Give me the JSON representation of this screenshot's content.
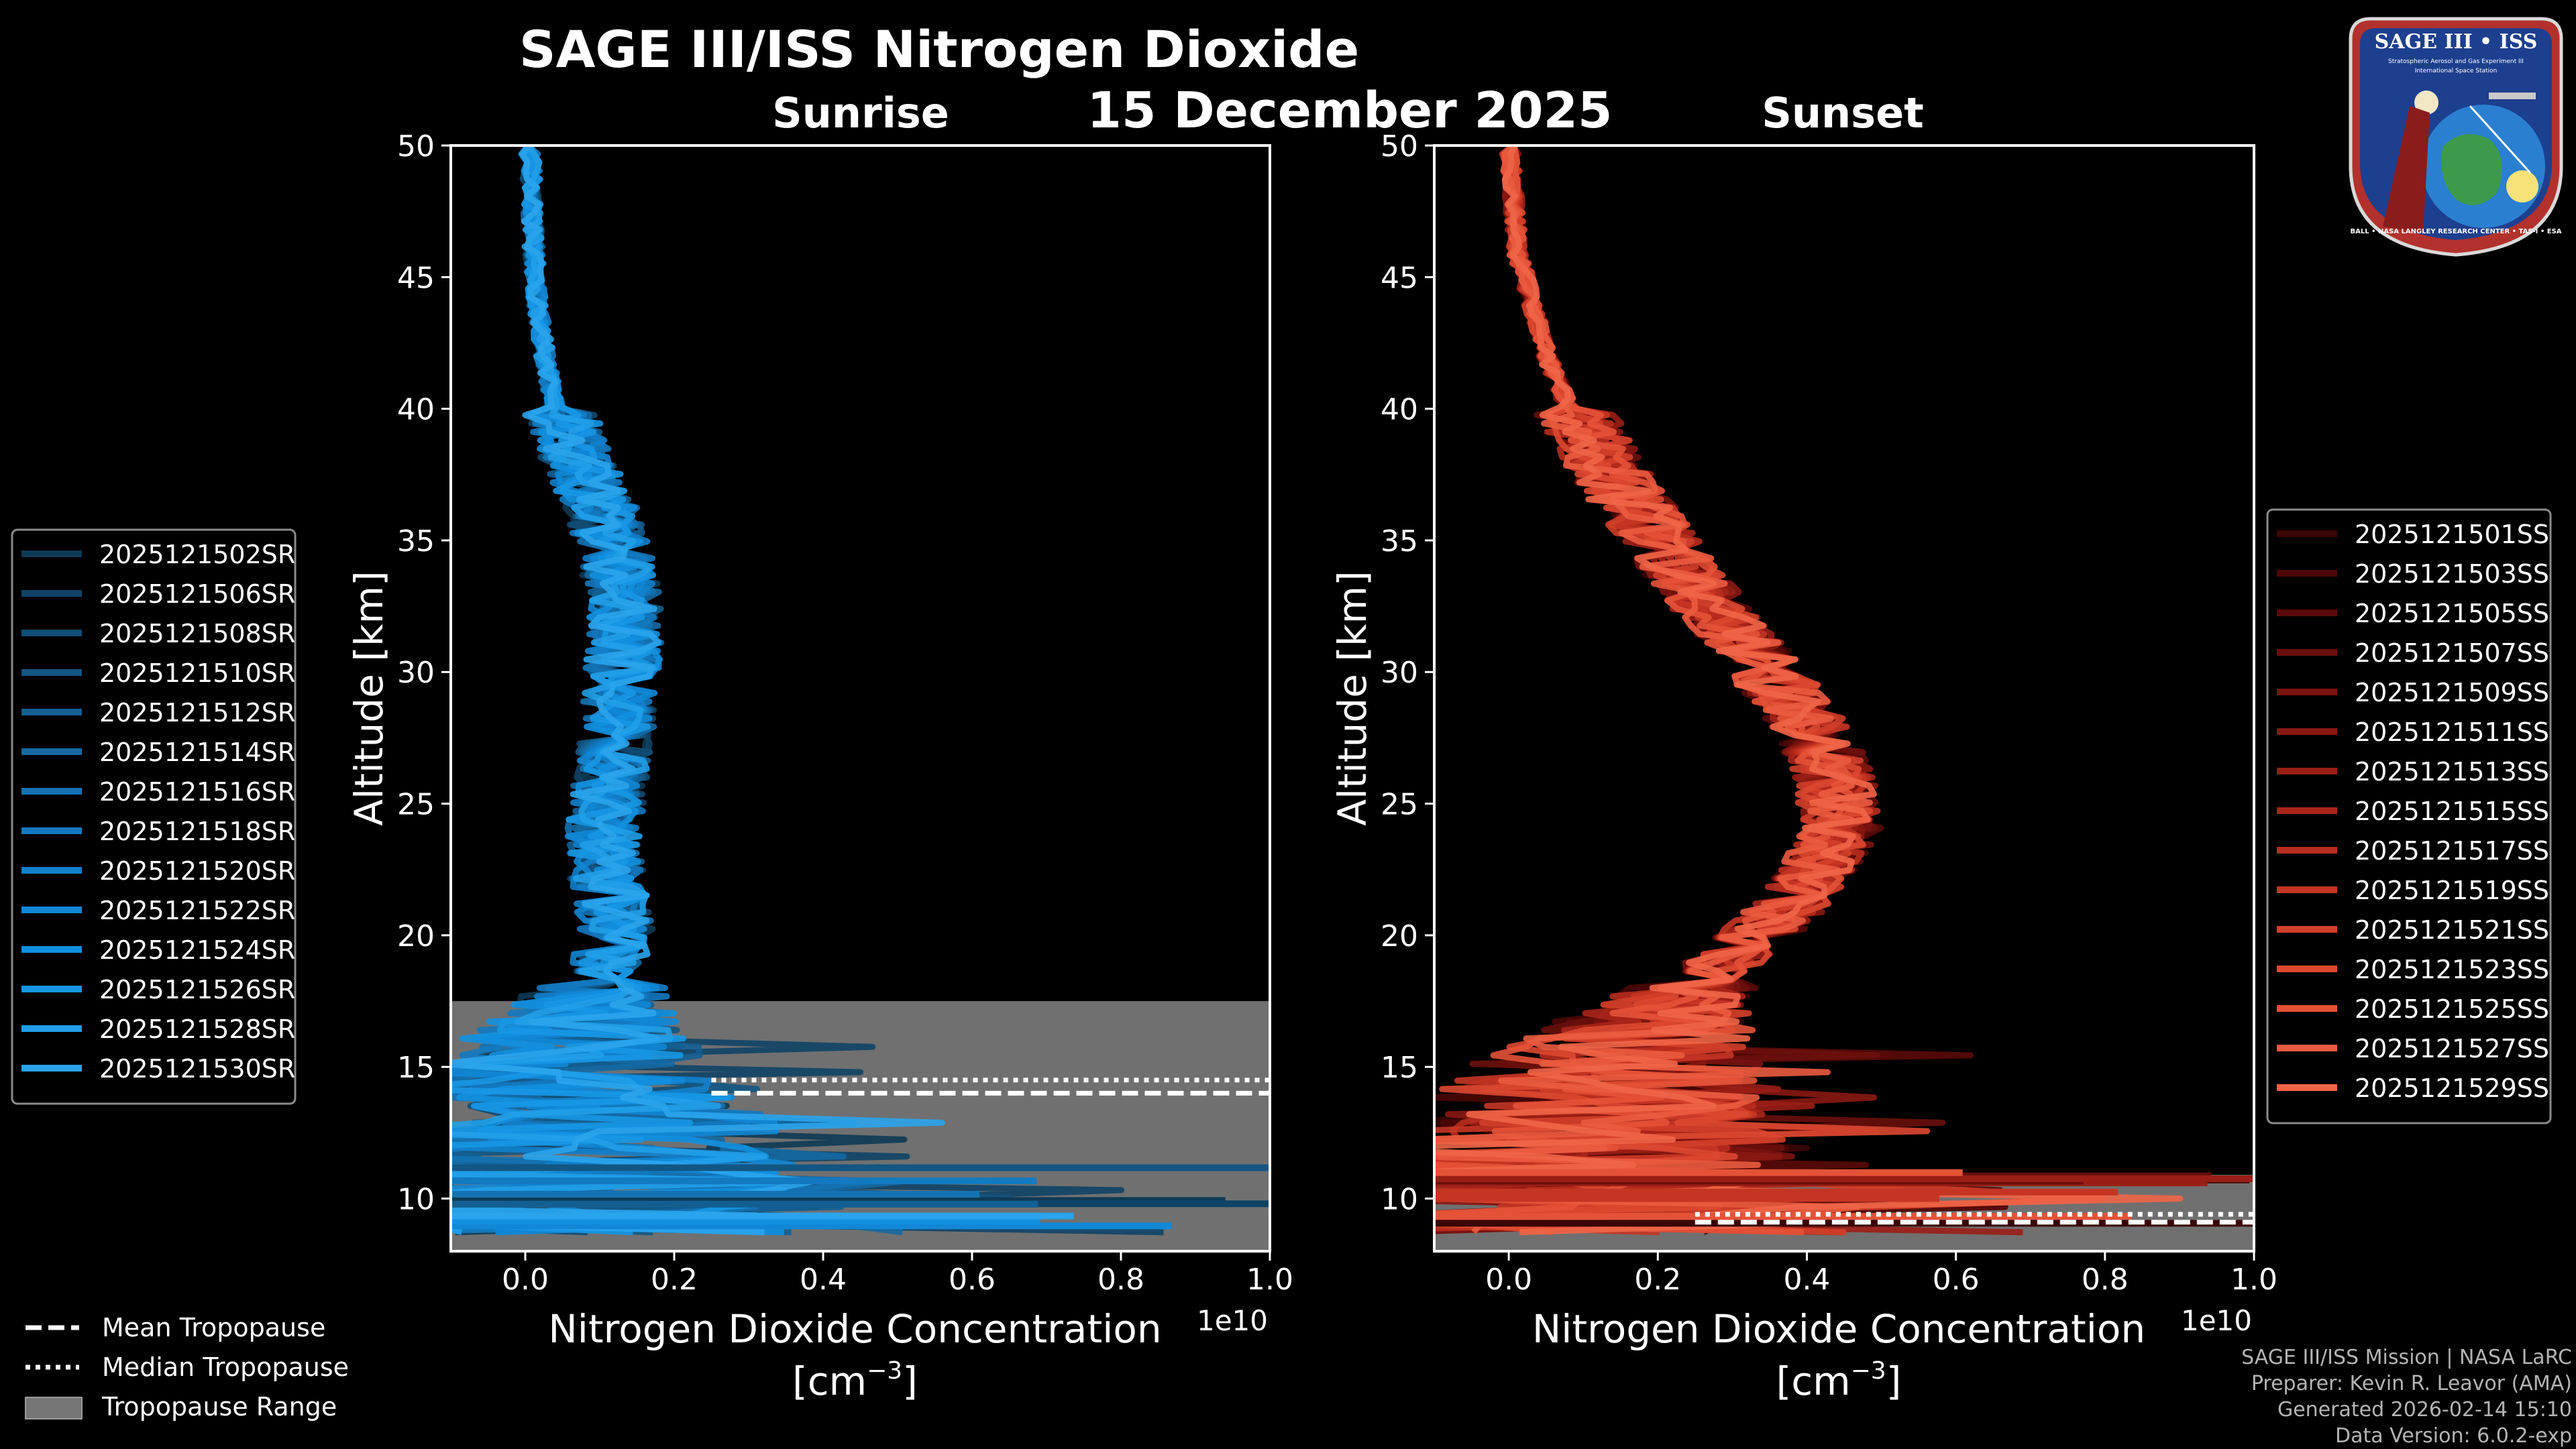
{
  "figure": {
    "title": "SAGE III/ISS Nitrogen Dioxide",
    "date": "15 December 2025",
    "panel_left_label": "Sunrise",
    "panel_right_label": "Sunset",
    "offset_text": "1e10",
    "xlabel_line1": "Nitrogen Dioxide Concentration",
    "xlabel_unit_prefix": "[cm",
    "xlabel_unit_exp": "−3",
    "xlabel_unit_suffix": "]",
    "ylabel": "Altitude [km]"
  },
  "badge": {
    "title": "SAGE III • ISS",
    "sub1": "Stratospheric Aerosol and Gas Experiment III",
    "sub2": "International Space Station",
    "ring": "BALL • NASA LANGLEY RESEARCH CENTER • TAS-I • ESA"
  },
  "footer": {
    "mission": "SAGE III/ISS Mission | NASA LaRC",
    "preparer": "Preparer: Kevin R. Leavor (AMA)",
    "generated": "Generated 2026-02-14 15:10",
    "version": "Data Version: 6.0.2-exp"
  },
  "tropo_legend": [
    {
      "label": "Mean Tropopause",
      "style": "dashed"
    },
    {
      "label": "Median Tropopause",
      "style": "dotted"
    },
    {
      "label": "Tropopause Range",
      "style": "patch"
    }
  ],
  "colors": {
    "background": "#000000",
    "sunrise_series": [
      "#0d3a55",
      "#0f4466",
      "#114d74",
      "#125683",
      "#135f92",
      "#1469a3",
      "#1472b3",
      "#1379c0",
      "#1280cb",
      "#1187d6",
      "#1290df",
      "#1797e4",
      "#219ee8",
      "#2aa4ec"
    ],
    "sunset_series": [
      "#3a0505",
      "#4a0807",
      "#5a0b09",
      "#6a0f0c",
      "#7a130f",
      "#8a1812",
      "#9a1e16",
      "#aa2519",
      "#b92d1e",
      "#c63523",
      "#d23f29",
      "#dc4830",
      "#e45237",
      "#ea5b3f",
      "#ef6547"
    ],
    "tropo_range": "#767676",
    "spine": "#ffffff"
  },
  "chart_data": [
    {
      "type": "line",
      "title": "Sunrise",
      "xlabel": "Nitrogen Dioxide Concentration [cm−3]",
      "ylabel": "Altitude [km]",
      "x_scale_factor": "1e10",
      "xlim": [
        -0.1,
        1.0
      ],
      "ylim": [
        8,
        50
      ],
      "xticks": [
        0.0,
        0.2,
        0.4,
        0.6,
        0.8,
        1.0
      ],
      "yticks": [
        10,
        15,
        20,
        25,
        30,
        35,
        40,
        45,
        50
      ],
      "grid": false,
      "legend_position": "outside-left",
      "profile_altitudes": [
        50,
        48,
        46,
        44,
        42,
        40,
        38,
        36,
        34,
        32,
        30,
        28,
        26,
        24,
        22,
        20,
        18,
        16,
        14,
        12,
        10,
        9
      ],
      "profile_mean": [
        0.005,
        0.008,
        0.01,
        0.015,
        0.025,
        0.04,
        0.065,
        0.1,
        0.12,
        0.13,
        0.125,
        0.12,
        0.11,
        0.1,
        0.105,
        0.12,
        0.09,
        0.05,
        0.03,
        0.02,
        0.01,
        0.0
      ],
      "tropopause": {
        "mean": 14.0,
        "median": 14.5,
        "range": [
          8,
          17.5
        ]
      },
      "series": [
        {
          "name": "2025121502SR"
        },
        {
          "name": "2025121506SR"
        },
        {
          "name": "2025121508SR"
        },
        {
          "name": "2025121510SR"
        },
        {
          "name": "2025121512SR"
        },
        {
          "name": "2025121514SR"
        },
        {
          "name": "2025121516SR"
        },
        {
          "name": "2025121518SR"
        },
        {
          "name": "2025121520SR"
        },
        {
          "name": "2025121522SR"
        },
        {
          "name": "2025121524SR"
        },
        {
          "name": "2025121526SR"
        },
        {
          "name": "2025121528SR"
        },
        {
          "name": "2025121530SR"
        }
      ]
    },
    {
      "type": "line",
      "title": "Sunset",
      "xlabel": "Nitrogen Dioxide Concentration [cm−3]",
      "ylabel": "Altitude [km]",
      "x_scale_factor": "1e10",
      "xlim": [
        -0.1,
        1.0
      ],
      "ylim": [
        8,
        50
      ],
      "xticks": [
        0.0,
        0.2,
        0.4,
        0.6,
        0.8,
        1.0
      ],
      "yticks": [
        10,
        15,
        20,
        25,
        30,
        35,
        40,
        45,
        50
      ],
      "grid": false,
      "legend_position": "outside-right",
      "profile_altitudes": [
        50,
        48,
        46,
        44,
        42,
        40,
        38,
        36,
        34,
        32,
        30,
        28,
        26,
        24,
        22,
        20,
        18,
        16,
        14,
        12,
        10,
        9
      ],
      "profile_mean": [
        0.0,
        0.005,
        0.01,
        0.03,
        0.05,
        0.08,
        0.12,
        0.17,
        0.22,
        0.28,
        0.34,
        0.4,
        0.43,
        0.44,
        0.4,
        0.33,
        0.24,
        0.15,
        0.08,
        0.05,
        0.03,
        0.01
      ],
      "tropopause": {
        "mean": 9.1,
        "median": 9.4,
        "range": [
          8,
          10.9
        ]
      },
      "series": [
        {
          "name": "2025121501SS"
        },
        {
          "name": "2025121503SS"
        },
        {
          "name": "2025121505SS"
        },
        {
          "name": "2025121507SS"
        },
        {
          "name": "2025121509SS"
        },
        {
          "name": "2025121511SS"
        },
        {
          "name": "2025121513SS"
        },
        {
          "name": "2025121515SS"
        },
        {
          "name": "2025121517SS"
        },
        {
          "name": "2025121519SS"
        },
        {
          "name": "2025121521SS"
        },
        {
          "name": "2025121523SS"
        },
        {
          "name": "2025121525SS"
        },
        {
          "name": "2025121527SS"
        },
        {
          "name": "2025121529SS"
        }
      ]
    }
  ]
}
